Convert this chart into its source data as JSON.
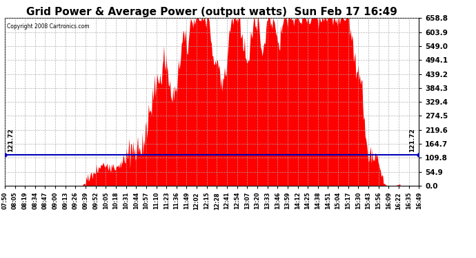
{
  "title": "Grid Power & Average Power (output watts)  Sun Feb 17 16:49",
  "copyright": "Copyright 2008 Cartronics.com",
  "avg_value": 121.72,
  "y_max": 658.8,
  "y_ticks": [
    0.0,
    54.9,
    109.8,
    164.7,
    219.6,
    274.5,
    329.4,
    384.3,
    439.2,
    494.1,
    549.0,
    603.9,
    658.8
  ],
  "background_color": "#ffffff",
  "fill_color": "#ff0000",
  "avg_line_color": "#0000bb",
  "grid_color": "#aaaaaa",
  "title_fontsize": 11,
  "x_labels": [
    "07:50",
    "08:05",
    "08:19",
    "08:34",
    "08:47",
    "09:00",
    "09:13",
    "09:26",
    "09:39",
    "09:52",
    "10:05",
    "10:18",
    "10:31",
    "10:44",
    "10:57",
    "11:10",
    "11:23",
    "11:36",
    "11:49",
    "12:02",
    "12:15",
    "12:28",
    "12:41",
    "12:54",
    "13:07",
    "13:20",
    "13:33",
    "13:46",
    "13:59",
    "14:12",
    "14:25",
    "14:38",
    "14:51",
    "15:04",
    "15:17",
    "15:30",
    "15:43",
    "15:56",
    "16:09",
    "16:22",
    "16:35",
    "16:49"
  ],
  "n_points": 540
}
